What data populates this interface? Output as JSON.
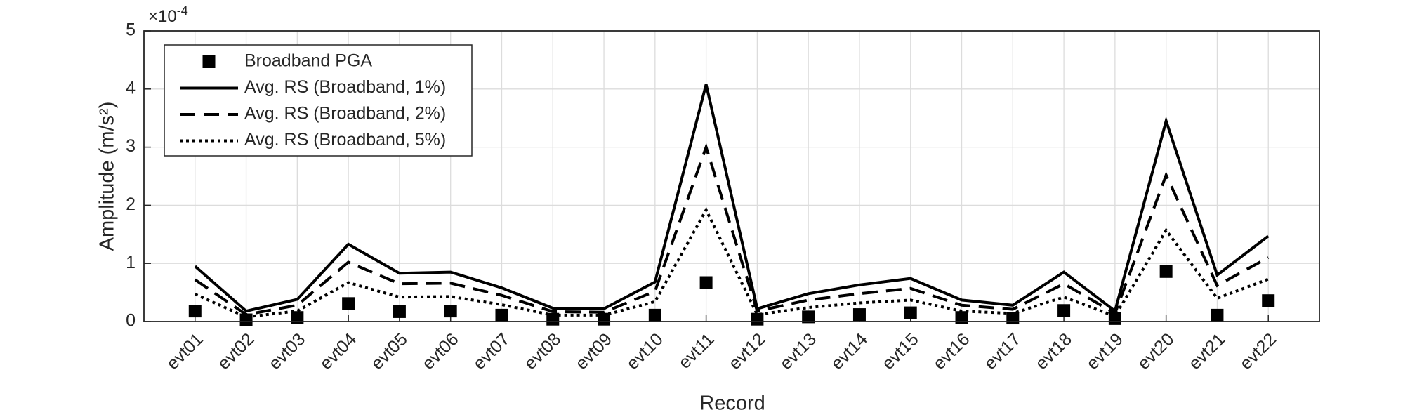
{
  "chart_data": {
    "type": "line",
    "xlabel": "Record",
    "ylabel": "Amplitude (m/s²)",
    "y_multiplier": "×10",
    "y_multiplier_exponent": "-4",
    "categories": [
      "evt01",
      "evt02",
      "evt03",
      "evt04",
      "evt05",
      "evt06",
      "evt07",
      "evt08",
      "evt09",
      "evt10",
      "evt11",
      "evt12",
      "evt13",
      "evt14",
      "evt15",
      "evt16",
      "evt17",
      "evt18",
      "evt19",
      "evt20",
      "evt21",
      "evt22"
    ],
    "series": [
      {
        "name": "Broadband PGA",
        "color": "#000000",
        "style": "marker",
        "marker": "square",
        "values": [
          0.18,
          0.03,
          0.07,
          0.31,
          0.17,
          0.18,
          0.11,
          0.04,
          0.04,
          0.11,
          0.67,
          0.04,
          0.08,
          0.12,
          0.15,
          0.07,
          0.06,
          0.19,
          0.05,
          0.86,
          0.11,
          0.36
        ]
      },
      {
        "name": "Avg. RS (Broadband, 1%)",
        "color": "#000000",
        "style": "solid",
        "values": [
          0.95,
          0.18,
          0.38,
          1.33,
          0.83,
          0.85,
          0.58,
          0.23,
          0.22,
          0.68,
          4.08,
          0.22,
          0.48,
          0.63,
          0.74,
          0.37,
          0.28,
          0.85,
          0.18,
          3.45,
          0.8,
          1.47
        ]
      },
      {
        "name": "Avg. RS (Broadband, 2%)",
        "color": "#000000",
        "style": "dashed",
        "values": [
          0.72,
          0.12,
          0.28,
          1.02,
          0.65,
          0.66,
          0.45,
          0.17,
          0.16,
          0.52,
          3.0,
          0.18,
          0.37,
          0.48,
          0.57,
          0.28,
          0.21,
          0.65,
          0.14,
          2.52,
          0.62,
          1.1
        ]
      },
      {
        "name": "Avg. RS (Broadband, 5%)",
        "color": "#000000",
        "style": "dotted",
        "values": [
          0.47,
          0.08,
          0.18,
          0.67,
          0.42,
          0.43,
          0.29,
          0.11,
          0.11,
          0.34,
          1.92,
          0.12,
          0.24,
          0.32,
          0.37,
          0.18,
          0.14,
          0.42,
          0.09,
          1.57,
          0.4,
          0.73
        ]
      }
    ],
    "ylim": [
      0,
      5
    ],
    "yticks": [
      0,
      1,
      2,
      3,
      4,
      5
    ],
    "grid": true,
    "legend": "upper-left"
  }
}
